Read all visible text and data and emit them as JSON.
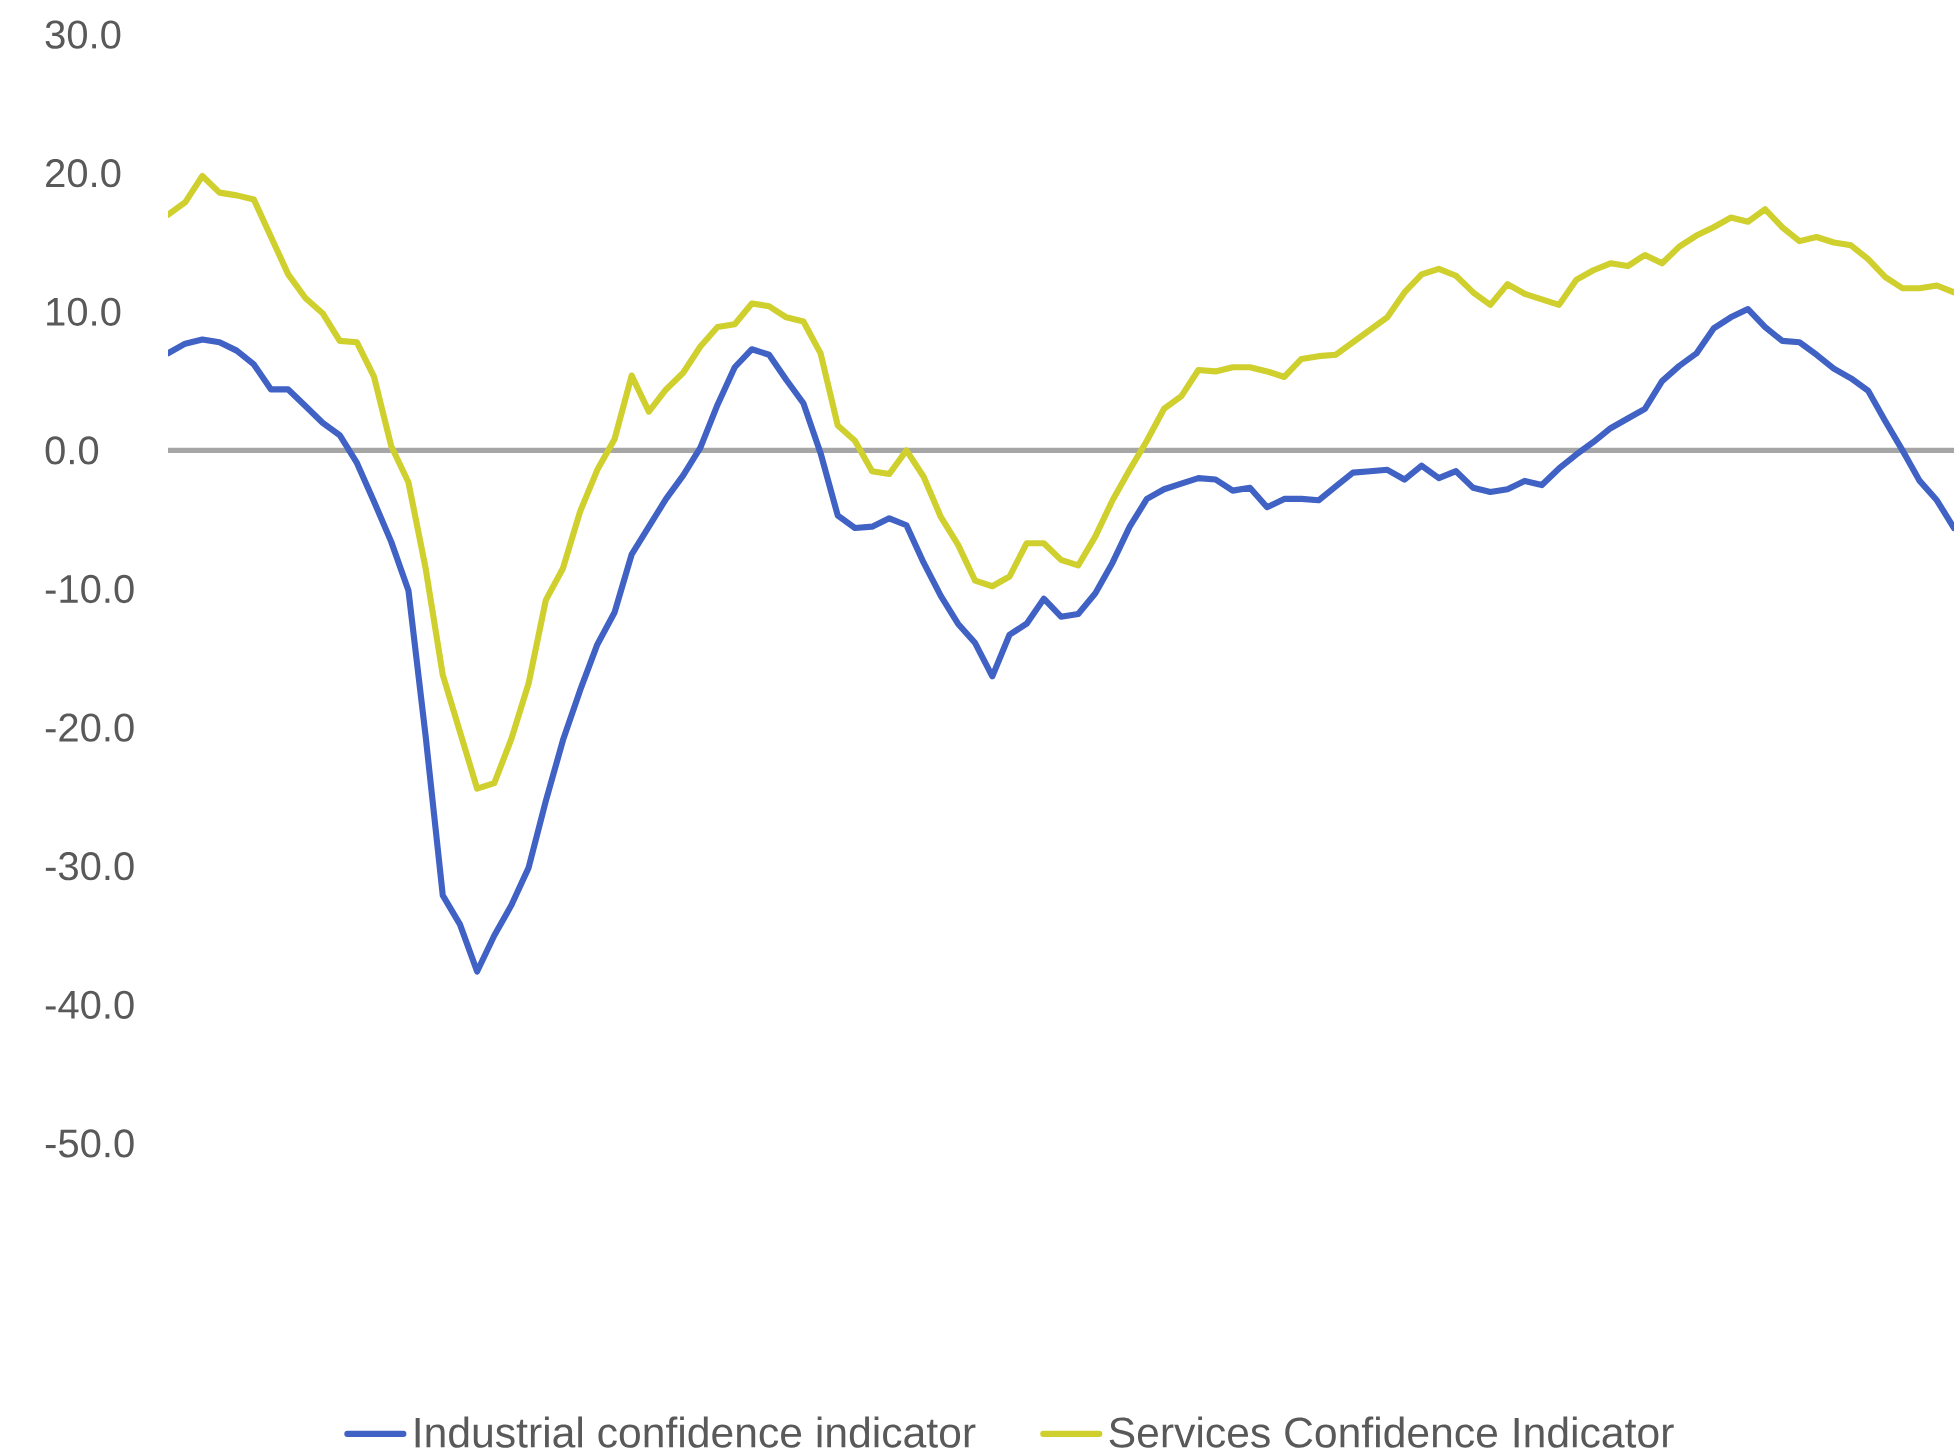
{
  "chart_data": {
    "type": "line",
    "categories": [
      null,
      null,
      null,
      null,
      null,
      null,
      null,
      null,
      null,
      null,
      null,
      null,
      null,
      null,
      null,
      null,
      null,
      null,
      null,
      null,
      null,
      null,
      null,
      null,
      null,
      null,
      null,
      null,
      null,
      null,
      null,
      null,
      null,
      null,
      null,
      null,
      null,
      null,
      null,
      null,
      null,
      null,
      null,
      null,
      null,
      null,
      null,
      null,
      null,
      null,
      null,
      null,
      null,
      null,
      null,
      null,
      null,
      null,
      null,
      null,
      null,
      null,
      null,
      null,
      null,
      null,
      null,
      null,
      null,
      null,
      null,
      null,
      null,
      null,
      null,
      null,
      null,
      null,
      null,
      null,
      null,
      null,
      null,
      null,
      null,
      null,
      null,
      null,
      null,
      null,
      null,
      null,
      null,
      null,
      null,
      null,
      null,
      null,
      null,
      null,
      null,
      null,
      null,
      null,
      null
    ],
    "series": [
      {
        "name": "Industrial confidence indicator",
        "color": "#4062c4",
        "values": [
          7.0,
          7.7,
          8.0,
          7.8,
          7.2,
          6.2,
          4.4,
          4.4,
          3.2,
          2.0,
          1.1,
          -0.9,
          -3.7,
          -6.6,
          -10.1,
          -20.6,
          -32.1,
          -34.2,
          -37.6,
          -35.0,
          -32.8,
          -30.1,
          -25.3,
          -20.9,
          -17.3,
          -14.0,
          -11.7,
          -7.5,
          -5.5,
          -3.5,
          -1.8,
          0.2,
          3.3,
          6.0,
          7.3,
          6.9,
          5.1,
          3.4,
          -0.2,
          -4.7,
          -5.6,
          -5.5,
          -4.9,
          -5.4,
          -8.1,
          -10.5,
          -12.5,
          -13.9,
          -16.3,
          -13.3,
          -12.5,
          -10.7,
          -12.0,
          -11.8,
          -10.3,
          -8.1,
          -5.5,
          -3.5,
          -2.8,
          -2.4,
          -2.0,
          -2.1,
          -2.9,
          -2.7,
          -4.1,
          -3.5,
          -3.5,
          -3.6,
          -2.6,
          -1.6,
          -1.5,
          -1.4,
          -2.1,
          -1.1,
          -2.0,
          -1.5,
          -2.7,
          -3.0,
          -2.8,
          -2.2,
          -2.5,
          -1.3,
          -0.3,
          0.6,
          1.6,
          2.3,
          3.0,
          5.0,
          6.1,
          7.0,
          8.8,
          9.6,
          10.2,
          8.9,
          7.9,
          7.8,
          6.9,
          5.9,
          5.2,
          4.3,
          2.1,
          0.0,
          -2.2,
          -3.6,
          -5.6
        ]
      },
      {
        "name": "Services Confidence Indicator",
        "color": "#cfcf2e",
        "values": [
          17.0,
          17.9,
          19.8,
          18.6,
          18.4,
          18.1,
          15.4,
          12.7,
          11.0,
          9.9,
          7.9,
          7.8,
          5.3,
          0.3,
          -2.3,
          -8.5,
          -16.2,
          -20.3,
          -24.4,
          -24.0,
          -20.8,
          -16.8,
          -10.8,
          -8.5,
          -4.4,
          -1.4,
          0.8,
          5.4,
          2.8,
          4.4,
          5.6,
          7.5,
          8.9,
          9.1,
          10.6,
          10.4,
          9.6,
          9.3,
          7.0,
          1.8,
          0.7,
          -1.5,
          -1.7,
          0.0,
          -1.9,
          -4.8,
          -6.8,
          -9.4,
          -9.8,
          -9.1,
          -6.7,
          -6.7,
          -7.9,
          -8.3,
          -6.2,
          -3.6,
          -1.4,
          0.7,
          3.0,
          3.9,
          5.8,
          5.7,
          6.0,
          6.0,
          5.7,
          5.3,
          6.6,
          6.8,
          6.9,
          7.8,
          8.7,
          9.6,
          11.4,
          12.7,
          13.1,
          12.6,
          11.4,
          10.5,
          12.0,
          11.3,
          10.9,
          10.5,
          12.3,
          13.0,
          13.5,
          13.3,
          14.1,
          13.5,
          14.7,
          15.5,
          16.1,
          16.8,
          16.5,
          17.4,
          16.1,
          15.1,
          15.4,
          15.0,
          14.8,
          13.8,
          12.5,
          11.7,
          11.7,
          11.9,
          11.4
        ]
      }
    ],
    "ylim": [
      -50,
      30
    ],
    "yticks": [
      {
        "value": -50,
        "label": "-50.0"
      },
      {
        "value": -40,
        "label": "-40.0"
      },
      {
        "value": -30,
        "label": "-30.0"
      },
      {
        "value": -20,
        "label": "-20.0"
      },
      {
        "value": -10,
        "label": "-10.0"
      },
      {
        "value": 0,
        "label": "0.0"
      },
      {
        "value": 10,
        "label": "10.0"
      },
      {
        "value": 20,
        "label": "20.0"
      },
      {
        "value": 30,
        "label": "30.0"
      }
    ],
    "legend": "bottom",
    "line_style": "solid"
  }
}
